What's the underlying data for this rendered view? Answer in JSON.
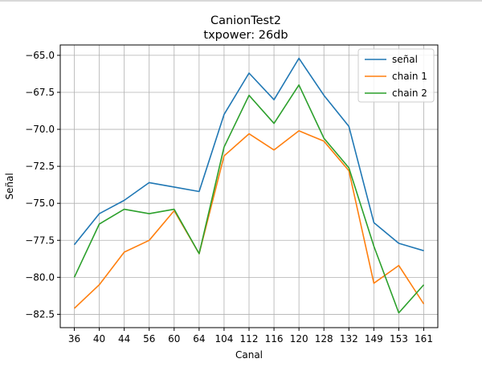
{
  "chart_data": {
    "type": "line",
    "title": "CanionTest2",
    "subtitle": "txpower: 26db",
    "xlabel": "Canal",
    "ylabel": "Señal",
    "categories": [
      "36",
      "40",
      "44",
      "56",
      "60",
      "64",
      "104",
      "112",
      "116",
      "120",
      "128",
      "132",
      "149",
      "153",
      "161"
    ],
    "ylim": [
      -83.4,
      -64.3
    ],
    "yticks": [
      -65.0,
      -67.5,
      -70.0,
      -72.5,
      -75.0,
      -77.5,
      -80.0,
      -82.5
    ],
    "ytick_labels": [
      "−65.0",
      "−67.5",
      "−70.0",
      "−72.5",
      "−75.0",
      "−77.5",
      "−80.0",
      "−82.5"
    ],
    "grid": true,
    "legend_position": "top-right",
    "series": [
      {
        "name": "señal",
        "color": "#1f77b4",
        "values": [
          -77.8,
          -75.7,
          -74.8,
          -73.6,
          -73.9,
          -74.2,
          -69.0,
          -66.2,
          -68.0,
          -65.2,
          -67.7,
          -69.8,
          -76.3,
          -77.7,
          -78.2
        ]
      },
      {
        "name": "chain 1",
        "color": "#ff7f0e",
        "values": [
          -82.1,
          -80.5,
          -78.3,
          -77.5,
          -75.5,
          -78.4,
          -71.8,
          -70.3,
          -71.4,
          -70.1,
          -70.8,
          -72.8,
          -80.4,
          -79.2,
          -81.8
        ]
      },
      {
        "name": "chain 2",
        "color": "#2ca02c",
        "values": [
          -80.0,
          -76.4,
          -75.4,
          -75.7,
          -75.4,
          -78.4,
          -71.2,
          -67.7,
          -69.6,
          -67.0,
          -70.6,
          -72.6,
          -77.9,
          -82.4,
          -80.5
        ]
      }
    ]
  }
}
